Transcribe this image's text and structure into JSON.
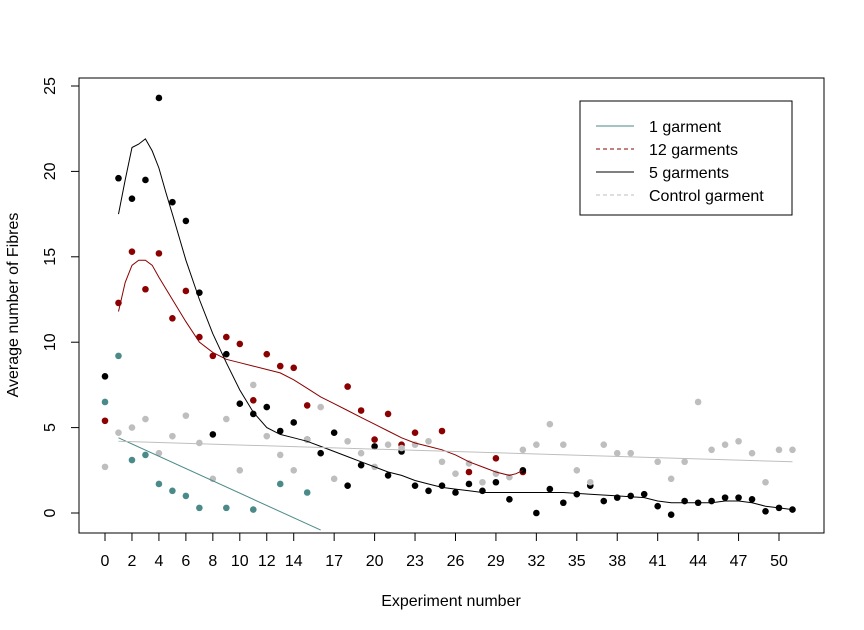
{
  "chart_data": {
    "type": "scatter",
    "title": "",
    "xlabel": "Experiment number",
    "ylabel": "Average number of Fibres",
    "xlim": [
      -2,
      53
    ],
    "ylim": [
      -1,
      25.5
    ],
    "x_ticks": [
      0,
      2,
      4,
      6,
      8,
      10,
      12,
      14,
      17,
      20,
      23,
      26,
      29,
      32,
      35,
      38,
      41,
      44,
      47,
      50
    ],
    "y_ticks": [
      0,
      5,
      10,
      15,
      20,
      25
    ],
    "grid": false,
    "legend_position": "top-right",
    "series": [
      {
        "name": "1 garment",
        "color": "#4a8a88",
        "line_style": "solid",
        "points": [
          [
            0,
            6.5
          ],
          [
            1,
            9.2
          ],
          [
            2,
            3.1
          ],
          [
            3,
            3.4
          ],
          [
            4,
            1.7
          ],
          [
            5,
            1.3
          ],
          [
            6,
            1.0
          ],
          [
            7,
            0.3
          ],
          [
            9,
            0.3
          ],
          [
            11,
            0.2
          ],
          [
            13,
            1.7
          ],
          [
            15,
            1.2
          ]
        ],
        "trend": [
          [
            1,
            4.4
          ],
          [
            16,
            -1.0
          ]
        ]
      },
      {
        "name": "12 garments",
        "color": "#8b0000",
        "line_style": "dashed",
        "points": [
          [
            0,
            5.4
          ],
          [
            1,
            12.3
          ],
          [
            2,
            15.3
          ],
          [
            3,
            13.1
          ],
          [
            4,
            15.2
          ],
          [
            5,
            11.4
          ],
          [
            6,
            13.0
          ],
          [
            7,
            10.3
          ],
          [
            8,
            9.2
          ],
          [
            9,
            10.3
          ],
          [
            10,
            9.9
          ],
          [
            11,
            6.6
          ],
          [
            12,
            9.3
          ],
          [
            13,
            8.6
          ],
          [
            14,
            8.5
          ],
          [
            15,
            6.3
          ],
          [
            18,
            7.4
          ],
          [
            19,
            6.0
          ],
          [
            20,
            4.3
          ],
          [
            21,
            5.8
          ],
          [
            22,
            4.0
          ],
          [
            23,
            4.7
          ],
          [
            25,
            4.8
          ],
          [
            27,
            2.4
          ],
          [
            29,
            3.2
          ],
          [
            31,
            2.4
          ]
        ],
        "trend": [
          [
            1,
            11.8
          ],
          [
            1.5,
            13.5
          ],
          [
            2,
            14.5
          ],
          [
            2.5,
            14.8
          ],
          [
            3,
            14.8
          ],
          [
            3.5,
            14.5
          ],
          [
            4,
            13.8
          ],
          [
            5,
            12.5
          ],
          [
            6,
            11.2
          ],
          [
            7,
            10.0
          ],
          [
            8,
            9.4
          ],
          [
            9,
            9.0
          ],
          [
            10,
            8.8
          ],
          [
            11,
            8.6
          ],
          [
            12,
            8.4
          ],
          [
            13,
            8.2
          ],
          [
            14,
            7.8
          ],
          [
            15,
            7.3
          ],
          [
            16,
            6.8
          ],
          [
            17,
            6.4
          ],
          [
            18,
            6.0
          ],
          [
            19,
            5.6
          ],
          [
            20,
            5.2
          ],
          [
            21,
            4.8
          ],
          [
            22,
            4.4
          ],
          [
            23,
            4.1
          ],
          [
            24,
            3.9
          ],
          [
            25,
            3.7
          ],
          [
            26,
            3.4
          ],
          [
            27,
            3.0
          ],
          [
            28,
            2.7
          ],
          [
            29,
            2.4
          ],
          [
            30,
            2.2
          ],
          [
            30.5,
            2.3
          ],
          [
            31,
            2.5
          ]
        ]
      },
      {
        "name": "5 garments",
        "color": "#000000",
        "line_style": "solid",
        "points": [
          [
            0,
            8.0
          ],
          [
            1,
            19.6
          ],
          [
            2,
            18.4
          ],
          [
            3,
            19.5
          ],
          [
            4,
            24.3
          ],
          [
            5,
            18.2
          ],
          [
            6,
            17.1
          ],
          [
            7,
            12.9
          ],
          [
            8,
            4.6
          ],
          [
            9,
            9.3
          ],
          [
            10,
            6.4
          ],
          [
            11,
            5.8
          ],
          [
            12,
            6.2
          ],
          [
            13,
            4.8
          ],
          [
            14,
            5.3
          ],
          [
            15,
            4.3
          ],
          [
            16,
            3.5
          ],
          [
            17,
            4.7
          ],
          [
            18,
            1.6
          ],
          [
            19,
            2.8
          ],
          [
            20,
            3.9
          ],
          [
            21,
            2.2
          ],
          [
            22,
            3.6
          ],
          [
            23,
            1.6
          ],
          [
            24,
            1.3
          ],
          [
            25,
            1.6
          ],
          [
            26,
            1.2
          ],
          [
            27,
            1.7
          ],
          [
            28,
            1.3
          ],
          [
            29,
            1.8
          ],
          [
            30,
            0.8
          ],
          [
            31,
            2.5
          ],
          [
            32,
            0.0
          ],
          [
            33,
            1.4
          ],
          [
            34,
            0.6
          ],
          [
            35,
            1.1
          ],
          [
            36,
            1.6
          ],
          [
            37,
            0.7
          ],
          [
            38,
            0.9
          ],
          [
            39,
            1.0
          ],
          [
            40,
            1.1
          ],
          [
            41,
            0.4
          ],
          [
            42,
            -0.1
          ],
          [
            43,
            0.7
          ],
          [
            44,
            0.6
          ],
          [
            45,
            0.7
          ],
          [
            46,
            0.9
          ],
          [
            47,
            0.9
          ],
          [
            48,
            0.8
          ],
          [
            49,
            0.1
          ],
          [
            50,
            0.3
          ],
          [
            51,
            0.2
          ]
        ],
        "trend": [
          [
            1,
            17.5
          ],
          [
            1.5,
            19.5
          ],
          [
            2,
            21.4
          ],
          [
            2.5,
            21.6
          ],
          [
            3,
            21.9
          ],
          [
            3.5,
            21.2
          ],
          [
            4,
            20.2
          ],
          [
            4.5,
            18.8
          ],
          [
            5,
            17.5
          ],
          [
            6,
            14.8
          ],
          [
            7,
            12.5
          ],
          [
            8,
            10.5
          ],
          [
            9,
            8.8
          ],
          [
            10,
            7.2
          ],
          [
            11,
            5.9
          ],
          [
            12,
            5.0
          ],
          [
            13,
            4.6
          ],
          [
            14,
            4.4
          ],
          [
            15,
            4.2
          ],
          [
            16,
            3.9
          ],
          [
            17,
            3.6
          ],
          [
            18,
            3.3
          ],
          [
            19,
            3.0
          ],
          [
            20,
            2.7
          ],
          [
            21,
            2.4
          ],
          [
            22,
            2.2
          ],
          [
            23,
            1.9
          ],
          [
            24,
            1.7
          ],
          [
            25,
            1.5
          ],
          [
            26,
            1.4
          ],
          [
            27,
            1.3
          ],
          [
            28,
            1.2
          ],
          [
            29,
            1.2
          ],
          [
            30,
            1.2
          ],
          [
            32,
            1.2
          ],
          [
            34,
            1.2
          ],
          [
            36,
            1.1
          ],
          [
            38,
            1.0
          ],
          [
            40,
            0.9
          ],
          [
            41,
            0.7
          ],
          [
            42,
            0.6
          ],
          [
            43,
            0.6
          ],
          [
            44,
            0.6
          ],
          [
            45,
            0.6
          ],
          [
            46,
            0.7
          ],
          [
            47,
            0.7
          ],
          [
            48,
            0.6
          ],
          [
            49,
            0.4
          ],
          [
            50,
            0.3
          ],
          [
            51,
            0.2
          ]
        ]
      },
      {
        "name": "Control garment",
        "color": "#bebebe",
        "line_style": "dashed",
        "points": [
          [
            0,
            2.7
          ],
          [
            1,
            4.7
          ],
          [
            2,
            5.0
          ],
          [
            3,
            5.5
          ],
          [
            4,
            3.5
          ],
          [
            5,
            4.5
          ],
          [
            6,
            5.7
          ],
          [
            7,
            4.1
          ],
          [
            8,
            2.0
          ],
          [
            9,
            5.5
          ],
          [
            10,
            2.5
          ],
          [
            11,
            7.5
          ],
          [
            12,
            4.5
          ],
          [
            13,
            3.4
          ],
          [
            14,
            2.5
          ],
          [
            15,
            4.3
          ],
          [
            16,
            6.2
          ],
          [
            17,
            2.0
          ],
          [
            18,
            4.2
          ],
          [
            19,
            3.5
          ],
          [
            20,
            2.7
          ],
          [
            21,
            4.0
          ],
          [
            22,
            3.8
          ],
          [
            23,
            4.0
          ],
          [
            24,
            4.2
          ],
          [
            25,
            3.0
          ],
          [
            26,
            2.3
          ],
          [
            27,
            2.9
          ],
          [
            28,
            1.8
          ],
          [
            29,
            2.3
          ],
          [
            30,
            2.1
          ],
          [
            31,
            3.7
          ],
          [
            32,
            4.0
          ],
          [
            33,
            5.2
          ],
          [
            34,
            4.0
          ],
          [
            35,
            2.5
          ],
          [
            36,
            1.8
          ],
          [
            37,
            4.0
          ],
          [
            38,
            3.5
          ],
          [
            39,
            3.5
          ],
          [
            41,
            3.0
          ],
          [
            42,
            2.0
          ],
          [
            43,
            3.0
          ],
          [
            44,
            6.5
          ],
          [
            45,
            3.7
          ],
          [
            46,
            4.0
          ],
          [
            47,
            4.2
          ],
          [
            48,
            3.5
          ],
          [
            49,
            1.8
          ],
          [
            50,
            3.7
          ],
          [
            51,
            3.7
          ]
        ],
        "trend": [
          [
            1,
            4.2
          ],
          [
            51,
            3.0
          ]
        ]
      }
    ]
  }
}
